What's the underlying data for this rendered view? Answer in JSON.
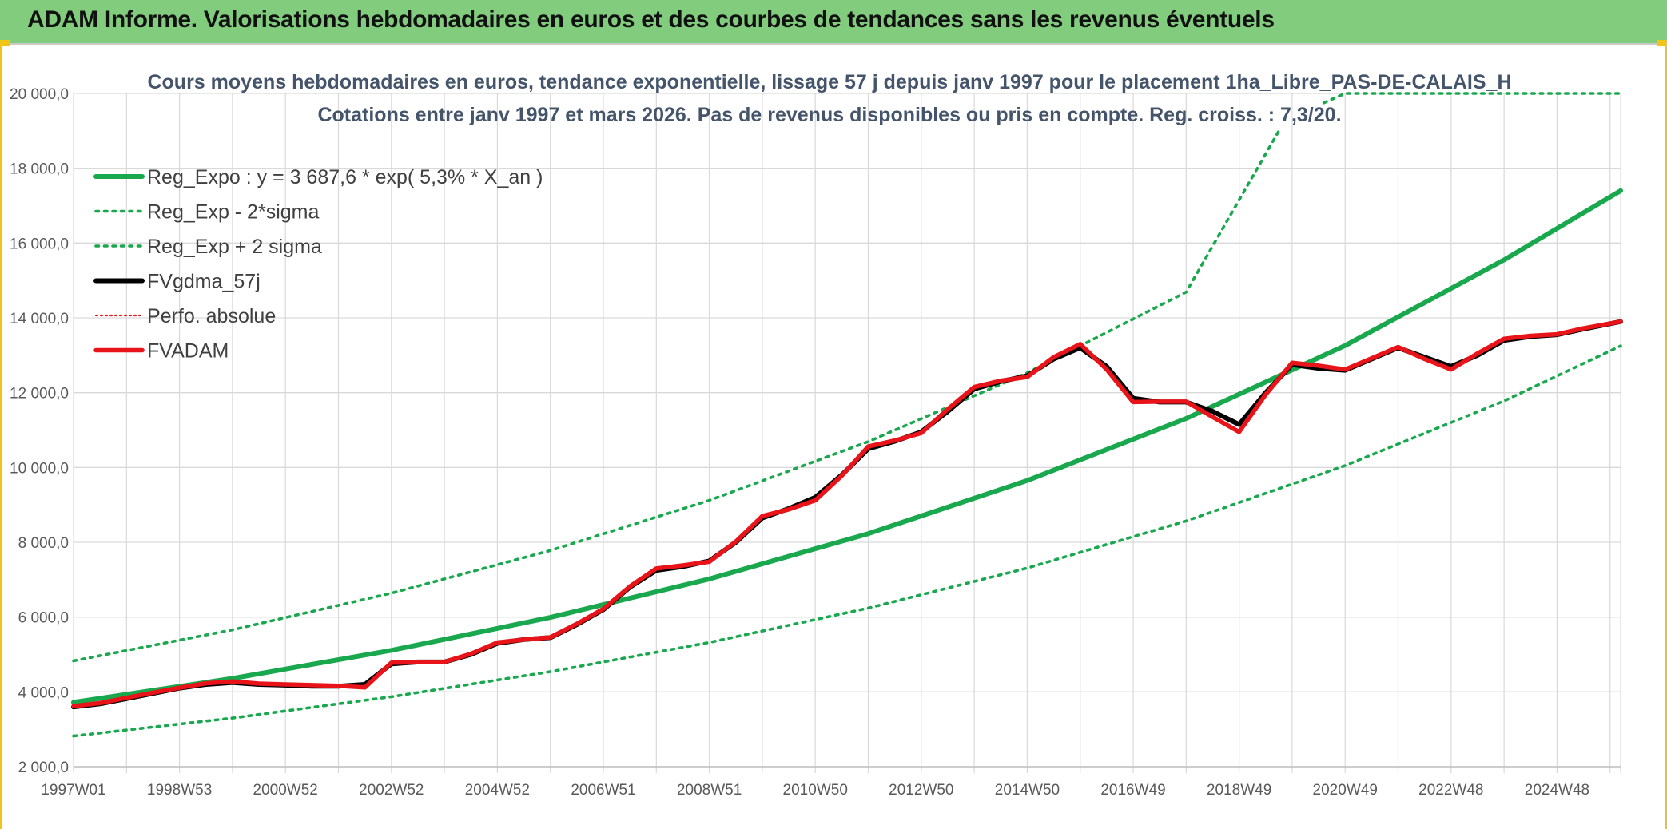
{
  "header": {
    "title": "ADAM Informe. Valorisations hebdomadaires en euros et des courbes de tendances sans les revenus éventuels"
  },
  "colors": {
    "header_bg": "#82cc7e",
    "frame_accent": "#f0c419",
    "trend_green": "#1aa84f",
    "fvadam_red": "#e8141a",
    "fvgdma_black": "#000000",
    "title_text": "#44546a",
    "grid": "#d9d9d9"
  },
  "chart_data": {
    "type": "line",
    "title_line1": "Cours moyens hebdomadaires en euros, tendance exponentielle, lissage 57 j depuis janv 1997 pour le placement 1ha_Libre_PAS-DE-CALAIS_H",
    "title_line2": "Cotations entre janv 1997 et mars 2026. Pas de revenus disponibles ou pris en compte. Reg. croiss. : 7,3/20.",
    "x_range_years": [
      1997.0,
      2026.2
    ],
    "ylim": [
      2000,
      20000
    ],
    "y_ticks": [
      {
        "value": 2000,
        "label": "2 000,0"
      },
      {
        "value": 4000,
        "label": "4 000,0"
      },
      {
        "value": 6000,
        "label": "6 000,0"
      },
      {
        "value": 8000,
        "label": "8 000,0"
      },
      {
        "value": 10000,
        "label": "10 000,0"
      },
      {
        "value": 12000,
        "label": "12 000,0"
      },
      {
        "value": 14000,
        "label": "14 000,0"
      },
      {
        "value": 16000,
        "label": "16 000,0"
      },
      {
        "value": 18000,
        "label": "18 000,0"
      },
      {
        "value": 20000,
        "label": "20 000,0"
      }
    ],
    "x_ticks": [
      {
        "year": 1997.0,
        "label": "1997W01"
      },
      {
        "year": 1999.0,
        "label": "1998W53"
      },
      {
        "year": 2001.0,
        "label": "2000W52"
      },
      {
        "year": 2003.0,
        "label": "2002W52"
      },
      {
        "year": 2005.0,
        "label": "2004W52"
      },
      {
        "year": 2007.0,
        "label": "2006W51"
      },
      {
        "year": 2009.0,
        "label": "2008W51"
      },
      {
        "year": 2011.0,
        "label": "2010W50"
      },
      {
        "year": 2013.0,
        "label": "2012W50"
      },
      {
        "year": 2015.0,
        "label": "2014W50"
      },
      {
        "year": 2017.0,
        "label": "2016W49"
      },
      {
        "year": 2019.0,
        "label": "2018W49"
      },
      {
        "year": 2021.0,
        "label": "2020W49"
      },
      {
        "year": 2023.0,
        "label": "2022W48"
      },
      {
        "year": 2025.0,
        "label": "2024W48"
      }
    ],
    "grid": true,
    "legend_position": "top-left",
    "series": [
      {
        "name": "Reg_Expo : y = 3 687,6 * exp( 5,3% *  X_an )",
        "style": "solid",
        "color": "#1aa84f",
        "x": [
          1997.0,
          2000.0,
          2003.0,
          2006.0,
          2009.0,
          2012.0,
          2015.0,
          2018.0,
          2021.0,
          2024.0,
          2026.2
        ],
        "y": [
          3720,
          4360,
          5110,
          5990,
          7020,
          8230,
          9650,
          11310,
          13260,
          15550,
          17400
        ]
      },
      {
        "name": "Reg_Exp - 2*sigma",
        "style": "dotted",
        "color": "#1aa84f",
        "x": [
          1997.0,
          2000.0,
          2003.0,
          2006.0,
          2009.0,
          2012.0,
          2015.0,
          2018.0,
          2021.0,
          2024.0,
          2026.2
        ],
        "y": [
          2820,
          3300,
          3870,
          4540,
          5320,
          6240,
          7310,
          8570,
          10050,
          11780,
          13250
        ]
      },
      {
        "name": "Reg_Exp + 2 sigma",
        "style": "dotted",
        "color": "#1aa84f",
        "x": [
          1997.0,
          2000.0,
          2003.0,
          2006.0,
          2009.0,
          2012.0,
          2015.0,
          2018.0,
          2019.75
        ],
        "y": [
          4830,
          5660,
          6640,
          7780,
          9120,
          10690,
          12530,
          14690,
          19000
        ],
        "x_cap": [
          2020.6,
          2021.0,
          2026.2
        ],
        "y_cap": [
          19750,
          20000,
          20000
        ]
      },
      {
        "name": "FVgdma_57j",
        "style": "solid",
        "color": "#000000",
        "x": [
          1997.0,
          1997.5,
          1998.0,
          1998.5,
          1999.0,
          1999.5,
          2000.0,
          2000.5,
          2001.0,
          2001.5,
          2002.0,
          2002.5,
          2003.0,
          2003.5,
          2004.0,
          2004.5,
          2005.0,
          2005.5,
          2006.0,
          2006.5,
          2007.0,
          2007.5,
          2008.0,
          2008.5,
          2009.0,
          2009.5,
          2010.0,
          2010.5,
          2011.0,
          2011.5,
          2012.0,
          2012.5,
          2013.0,
          2013.5,
          2014.0,
          2014.5,
          2015.0,
          2015.5,
          2016.0,
          2016.5,
          2017.0,
          2017.5,
          2018.0,
          2018.5,
          2019.0,
          2019.5,
          2020.0,
          2020.5,
          2021.0,
          2021.5,
          2022.0,
          2022.5,
          2023.0,
          2023.5,
          2024.0,
          2024.5,
          2025.0,
          2025.5,
          2026.2
        ],
        "y": [
          3600,
          3680,
          3820,
          3960,
          4100,
          4200,
          4250,
          4200,
          4180,
          4150,
          4150,
          4200,
          4750,
          4800,
          4800,
          5000,
          5300,
          5400,
          5450,
          5800,
          6200,
          6800,
          7250,
          7350,
          7500,
          8000,
          8650,
          8900,
          9200,
          9800,
          10500,
          10700,
          10950,
          11500,
          12100,
          12300,
          12450,
          12900,
          13200,
          12700,
          11850,
          11750,
          11750,
          11500,
          11150,
          12000,
          12750,
          12650,
          12600,
          12900,
          13200,
          12950,
          12700,
          13000,
          13400,
          13500,
          13550,
          13700,
          13900
        ]
      },
      {
        "name": "Perfo. absolue",
        "style": "dotted",
        "color": "#e8141a",
        "x": [],
        "y": []
      },
      {
        "name": "FVADAM",
        "style": "solid",
        "color": "#e8141a",
        "x": [
          1997.0,
          1997.5,
          1998.0,
          1998.5,
          1999.0,
          1999.5,
          2000.0,
          2000.5,
          2001.0,
          2001.5,
          2002.0,
          2002.5,
          2003.0,
          2003.5,
          2004.0,
          2004.5,
          2005.0,
          2005.5,
          2006.0,
          2006.5,
          2007.0,
          2007.5,
          2008.0,
          2008.5,
          2009.0,
          2009.5,
          2010.0,
          2010.5,
          2011.0,
          2011.5,
          2012.0,
          2012.5,
          2013.0,
          2013.5,
          2014.0,
          2014.5,
          2015.0,
          2015.5,
          2016.0,
          2016.5,
          2017.0,
          2017.5,
          2018.0,
          2018.5,
          2019.0,
          2019.5,
          2020.0,
          2020.5,
          2021.0,
          2021.5,
          2022.0,
          2022.5,
          2023.0,
          2023.5,
          2024.0,
          2024.5,
          2025.0,
          2025.5,
          2026.2
        ],
        "y": [
          3620,
          3700,
          3840,
          3980,
          4110,
          4230,
          4280,
          4220,
          4200,
          4180,
          4160,
          4120,
          4780,
          4790,
          4800,
          5020,
          5320,
          5400,
          5460,
          5820,
          6220,
          6820,
          7300,
          7380,
          7480,
          8020,
          8700,
          8880,
          9120,
          9780,
          10560,
          10720,
          10920,
          11560,
          12150,
          12320,
          12420,
          12950,
          13300,
          12620,
          11750,
          11760,
          11760,
          11350,
          10950,
          11950,
          12800,
          12720,
          12620,
          12920,
          13220,
          12900,
          12620,
          13050,
          13440,
          13520,
          13560,
          13720,
          13900
        ]
      }
    ]
  }
}
